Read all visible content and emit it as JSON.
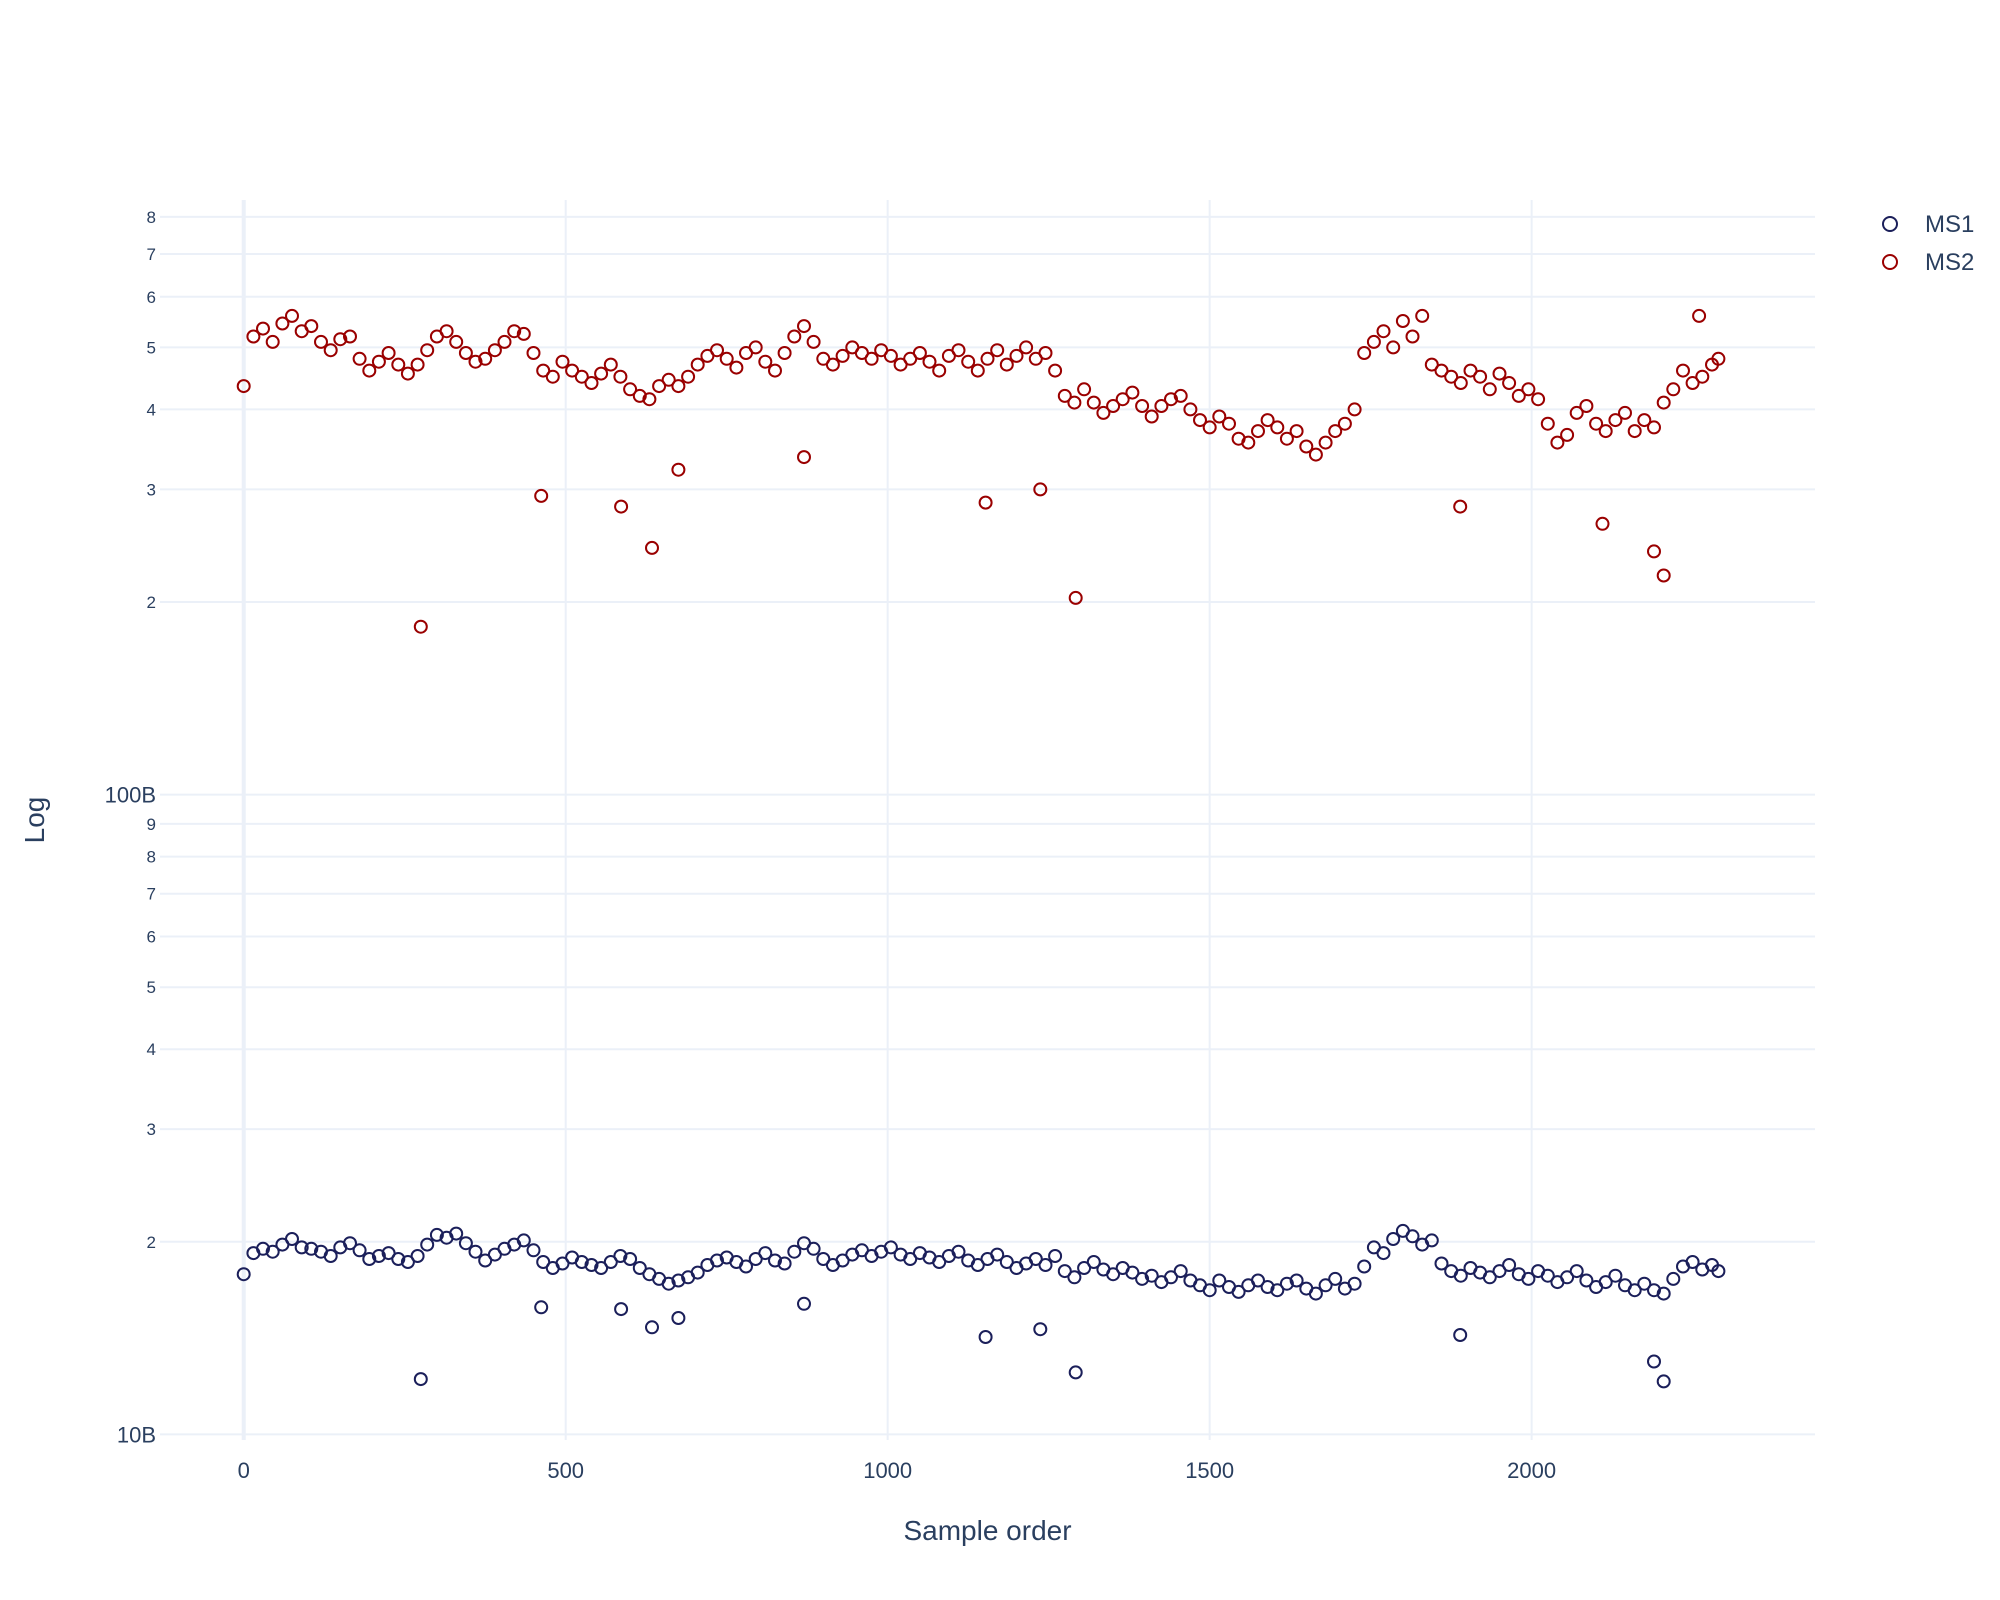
{
  "chart_data": {
    "type": "scatter",
    "xlabel": "Sample order",
    "ylabel": "Log",
    "y_scale": "log",
    "grid": true,
    "legend_position": "top-right",
    "xlim": [
      -130,
      2440
    ],
    "ylim": [
      9800000000,
      850000000000
    ],
    "x_ticks": [
      0,
      500,
      1000,
      1500,
      2000
    ],
    "x_tick_labels": [
      "0",
      "500",
      "1000",
      "1500",
      "2000"
    ],
    "y_major_ticks": [
      {
        "value": 10000000000,
        "label": "10B"
      },
      {
        "value": 100000000000,
        "label": "100B"
      }
    ],
    "y_minor_ticks": [
      {
        "value": 20000000000,
        "label": "2"
      },
      {
        "value": 30000000000,
        "label": "3"
      },
      {
        "value": 40000000000,
        "label": "4"
      },
      {
        "value": 50000000000,
        "label": "5"
      },
      {
        "value": 60000000000,
        "label": "6"
      },
      {
        "value": 70000000000,
        "label": "7"
      },
      {
        "value": 80000000000,
        "label": "8"
      },
      {
        "value": 90000000000,
        "label": "9"
      },
      {
        "value": 200000000000,
        "label": "2"
      },
      {
        "value": 300000000000,
        "label": "3"
      },
      {
        "value": 400000000000,
        "label": "4"
      },
      {
        "value": 500000000000,
        "label": "5"
      },
      {
        "value": 600000000000,
        "label": "6"
      },
      {
        "value": 700000000000,
        "label": "7"
      },
      {
        "value": 800000000000,
        "label": "8"
      }
    ],
    "series": [
      {
        "name": "MS1",
        "color": "#1b1f5a",
        "marker": "open-circle",
        "x": [
          0,
          15,
          30,
          45,
          60,
          75,
          90,
          105,
          120,
          135,
          150,
          165,
          180,
          195,
          210,
          225,
          240,
          255,
          270,
          285,
          300,
          315,
          330,
          345,
          360,
          375,
          390,
          405,
          420,
          435,
          450,
          465,
          480,
          495,
          510,
          525,
          540,
          555,
          570,
          585,
          600,
          615,
          630,
          645,
          660,
          675,
          690,
          705,
          720,
          735,
          750,
          765,
          780,
          795,
          810,
          825,
          840,
          855,
          870,
          885,
          900,
          915,
          930,
          945,
          960,
          975,
          990,
          1005,
          1020,
          1035,
          1050,
          1065,
          1080,
          1095,
          1110,
          1125,
          1140,
          1155,
          1170,
          1185,
          1200,
          1215,
          1230,
          1245,
          1260,
          1275,
          1290,
          1305,
          1320,
          1335,
          1350,
          1365,
          1380,
          1395,
          1410,
          1425,
          1440,
          1455,
          1470,
          1485,
          1500,
          1515,
          1530,
          1545,
          1560,
          1575,
          1590,
          1605,
          1620,
          1635,
          1650,
          1665,
          1680,
          1695,
          1710,
          1725,
          1740,
          1755,
          1770,
          1785,
          1800,
          1815,
          1830,
          1845,
          1860,
          1875,
          1890,
          1905,
          1920,
          1935,
          1950,
          1965,
          1980,
          1995,
          2010,
          2025,
          2040,
          2055,
          2070,
          2085,
          2100,
          2115,
          2130,
          2145,
          2160,
          2175,
          2190,
          2205,
          2220,
          2235,
          2250,
          2265,
          2280,
          2290,
          275,
          462,
          586,
          634,
          675,
          870,
          1152,
          1237,
          1292,
          1889,
          2190,
          2205
        ],
        "y": [
          17800000000.0,
          19200000000.0,
          19500000000.0,
          19300000000.0,
          19800000000.0,
          20200000000.0,
          19600000000.0,
          19500000000.0,
          19300000000.0,
          19000000000.0,
          19600000000.0,
          19900000000.0,
          19400000000.0,
          18800000000.0,
          19000000000.0,
          19200000000.0,
          18800000000.0,
          18600000000.0,
          19000000000.0,
          19800000000.0,
          20500000000.0,
          20300000000.0,
          20600000000.0,
          19900000000.0,
          19300000000.0,
          18700000000.0,
          19100000000.0,
          19500000000.0,
          19800000000.0,
          20100000000.0,
          19400000000.0,
          18600000000.0,
          18200000000.0,
          18500000000.0,
          18900000000.0,
          18600000000.0,
          18400000000.0,
          18200000000.0,
          18600000000.0,
          19000000000.0,
          18800000000.0,
          18200000000.0,
          17800000000.0,
          17500000000.0,
          17200000000.0,
          17400000000.0,
          17600000000.0,
          17900000000.0,
          18400000000.0,
          18700000000.0,
          18900000000.0,
          18600000000.0,
          18300000000.0,
          18800000000.0,
          19200000000.0,
          18700000000.0,
          18500000000.0,
          19300000000.0,
          19900000000.0,
          19500000000.0,
          18800000000.0,
          18400000000.0,
          18700000000.0,
          19100000000.0,
          19400000000.0,
          19000000000.0,
          19300000000.0,
          19600000000.0,
          19100000000.0,
          18800000000.0,
          19200000000.0,
          18900000000.0,
          18600000000.0,
          19000000000.0,
          19300000000.0,
          18700000000.0,
          18400000000.0,
          18800000000.0,
          19100000000.0,
          18600000000.0,
          18200000000.0,
          18500000000.0,
          18800000000.0,
          18400000000.0,
          19000000000.0,
          18000000000.0,
          17600000000.0,
          18200000000.0,
          18600000000.0,
          18100000000.0,
          17800000000.0,
          18200000000.0,
          17900000000.0,
          17500000000.0,
          17700000000.0,
          17300000000.0,
          17600000000.0,
          18000000000.0,
          17400000000.0,
          17100000000.0,
          16800000000.0,
          17400000000.0,
          17000000000.0,
          16700000000.0,
          17100000000.0,
          17400000000.0,
          17000000000.0,
          16800000000.0,
          17200000000.0,
          17400000000.0,
          16900000000.0,
          16600000000.0,
          17100000000.0,
          17500000000.0,
          16900000000.0,
          17200000000.0,
          18300000000.0,
          19600000000.0,
          19200000000.0,
          20200000000.0,
          20800000000.0,
          20400000000.0,
          19800000000.0,
          20100000000.0,
          18500000000.0,
          18000000000.0,
          17700000000.0,
          18200000000.0,
          17900000000.0,
          17600000000.0,
          18000000000.0,
          18400000000.0,
          17800000000.0,
          17500000000.0,
          18000000000.0,
          17700000000.0,
          17300000000.0,
          17600000000.0,
          18000000000.0,
          17400000000.0,
          17000000000.0,
          17300000000.0,
          17700000000.0,
          17100000000.0,
          16800000000.0,
          17200000000.0,
          16800000000.0,
          16600000000.0,
          17500000000.0,
          18300000000.0,
          18600000000.0,
          18100000000.0,
          18400000000.0,
          18000000000.0,
          12200000000.0,
          15800000000.0,
          15700000000.0,
          14700000000.0,
          15200000000.0,
          16000000000.0,
          14200000000.0,
          14600000000.0,
          12500000000.0,
          14300000000.0,
          13000000000.0,
          12100000000.0
        ]
      },
      {
        "name": "MS2",
        "color": "#9a0000",
        "marker": "open-circle",
        "x": [
          0,
          15,
          30,
          45,
          60,
          75,
          90,
          105,
          120,
          135,
          150,
          165,
          180,
          195,
          210,
          225,
          240,
          255,
          270,
          285,
          300,
          315,
          330,
          345,
          360,
          375,
          390,
          405,
          420,
          435,
          450,
          465,
          480,
          495,
          510,
          525,
          540,
          555,
          570,
          585,
          600,
          615,
          630,
          645,
          660,
          675,
          690,
          705,
          720,
          735,
          750,
          765,
          780,
          795,
          810,
          825,
          840,
          855,
          870,
          885,
          900,
          915,
          930,
          945,
          960,
          975,
          990,
          1005,
          1020,
          1035,
          1050,
          1065,
          1080,
          1095,
          1110,
          1125,
          1140,
          1155,
          1170,
          1185,
          1200,
          1215,
          1230,
          1245,
          1260,
          1275,
          1290,
          1305,
          1320,
          1335,
          1350,
          1365,
          1380,
          1395,
          1410,
          1425,
          1440,
          1455,
          1470,
          1485,
          1500,
          1515,
          1530,
          1545,
          1560,
          1575,
          1590,
          1605,
          1620,
          1635,
          1650,
          1665,
          1680,
          1695,
          1710,
          1725,
          1740,
          1755,
          1770,
          1785,
          1800,
          1815,
          1830,
          1845,
          1860,
          1875,
          1890,
          1905,
          1920,
          1935,
          1950,
          1965,
          1980,
          1995,
          2010,
          2025,
          2040,
          2055,
          2070,
          2085,
          2100,
          2115,
          2130,
          2145,
          2160,
          2175,
          2190,
          2205,
          2220,
          2235,
          2250,
          2265,
          2280,
          2290,
          275,
          462,
          586,
          634,
          675,
          870,
          1152,
          1237,
          1292,
          1889,
          2110,
          2190,
          2205,
          2260
        ],
        "y": [
          435000000000.0,
          520000000000.0,
          535000000000.0,
          510000000000.0,
          545000000000.0,
          560000000000.0,
          530000000000.0,
          540000000000.0,
          510000000000.0,
          495000000000.0,
          515000000000.0,
          520000000000.0,
          480000000000.0,
          460000000000.0,
          475000000000.0,
          490000000000.0,
          470000000000.0,
          455000000000.0,
          470000000000.0,
          495000000000.0,
          520000000000.0,
          530000000000.0,
          510000000000.0,
          490000000000.0,
          475000000000.0,
          480000000000.0,
          495000000000.0,
          510000000000.0,
          530000000000.0,
          525000000000.0,
          490000000000.0,
          460000000000.0,
          450000000000.0,
          475000000000.0,
          460000000000.0,
          450000000000.0,
          440000000000.0,
          455000000000.0,
          470000000000.0,
          450000000000.0,
          430000000000.0,
          420000000000.0,
          415000000000.0,
          435000000000.0,
          445000000000.0,
          435000000000.0,
          450000000000.0,
          470000000000.0,
          485000000000.0,
          495000000000.0,
          480000000000.0,
          465000000000.0,
          490000000000.0,
          500000000000.0,
          475000000000.0,
          460000000000.0,
          490000000000.0,
          520000000000.0,
          540000000000.0,
          510000000000.0,
          480000000000.0,
          470000000000.0,
          485000000000.0,
          500000000000.0,
          490000000000.0,
          480000000000.0,
          495000000000.0,
          485000000000.0,
          470000000000.0,
          480000000000.0,
          490000000000.0,
          475000000000.0,
          460000000000.0,
          485000000000.0,
          495000000000.0,
          475000000000.0,
          460000000000.0,
          480000000000.0,
          495000000000.0,
          470000000000.0,
          485000000000.0,
          500000000000.0,
          480000000000.0,
          490000000000.0,
          460000000000.0,
          420000000000.0,
          410000000000.0,
          430000000000.0,
          410000000000.0,
          395000000000.0,
          405000000000.0,
          415000000000.0,
          425000000000.0,
          405000000000.0,
          390000000000.0,
          405000000000.0,
          415000000000.0,
          420000000000.0,
          400000000000.0,
          385000000000.0,
          375000000000.0,
          390000000000.0,
          380000000000.0,
          360000000000.0,
          355000000000.0,
          370000000000.0,
          385000000000.0,
          375000000000.0,
          360000000000.0,
          370000000000.0,
          350000000000.0,
          340000000000.0,
          355000000000.0,
          370000000000.0,
          380000000000.0,
          400000000000.0,
          490000000000.0,
          510000000000.0,
          530000000000.0,
          500000000000.0,
          550000000000.0,
          520000000000.0,
          560000000000.0,
          470000000000.0,
          460000000000.0,
          450000000000.0,
          440000000000.0,
          460000000000.0,
          450000000000.0,
          430000000000.0,
          455000000000.0,
          440000000000.0,
          420000000000.0,
          430000000000.0,
          415000000000.0,
          380000000000.0,
          355000000000.0,
          365000000000.0,
          395000000000.0,
          405000000000.0,
          380000000000.0,
          370000000000.0,
          385000000000.0,
          395000000000.0,
          370000000000.0,
          385000000000.0,
          375000000000.0,
          410000000000.0,
          430000000000.0,
          460000000000.0,
          440000000000.0,
          450000000000.0,
          470000000000.0,
          480000000000.0,
          183000000000.0,
          293000000000.0,
          282000000000.0,
          243000000000.0,
          322000000000.0,
          337000000000.0,
          286000000000.0,
          300000000000.0,
          203000000000.0,
          282000000000.0,
          265000000000.0,
          240000000000.0,
          220000000000.0,
          560000000000.0
        ]
      }
    ]
  }
}
